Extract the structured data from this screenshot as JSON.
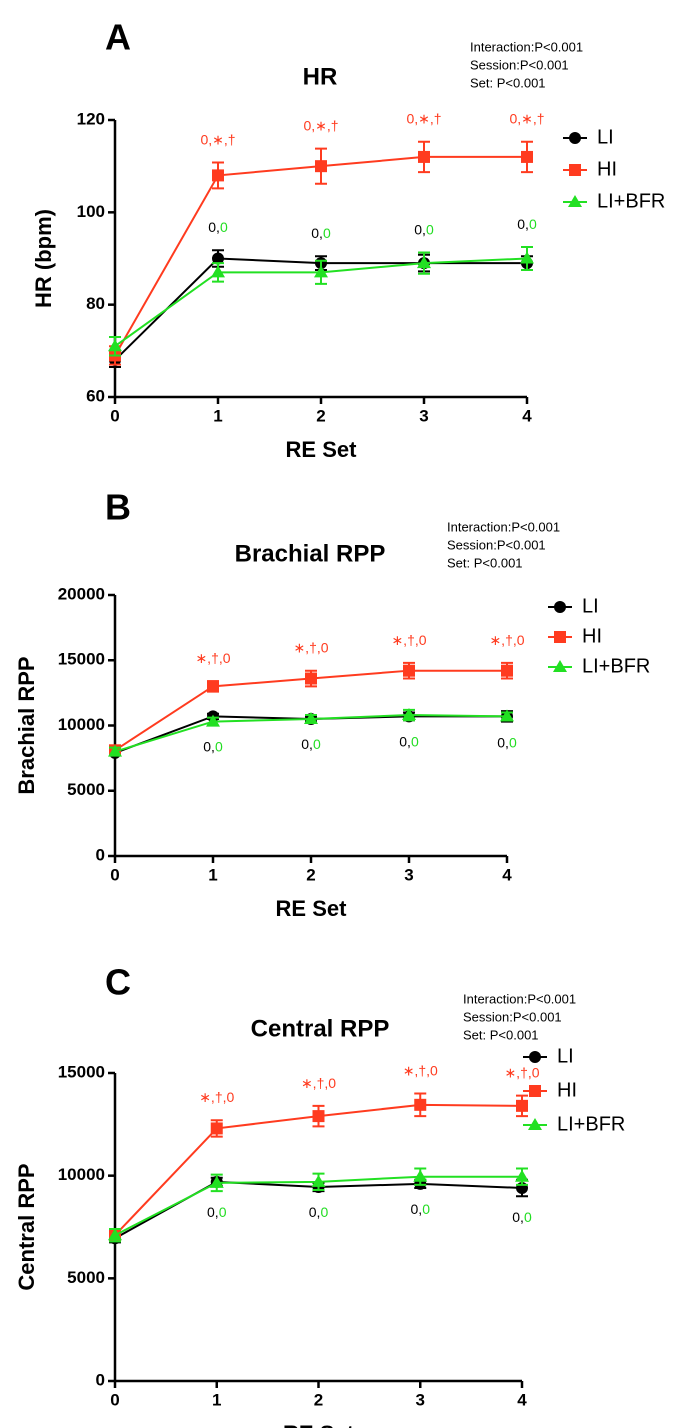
{
  "chart_data": [
    {
      "type": "line",
      "panel": "A",
      "title": "HR",
      "stats": [
        "Interaction:P<0.001",
        "Session:P<0.001",
        "Set: P<0.001"
      ],
      "x_label": "RE Set",
      "y_label": "HR (bpm)",
      "x": [
        0,
        1,
        2,
        3,
        4
      ],
      "xlim": [
        0,
        4
      ],
      "xticks": [
        0,
        1,
        2,
        3,
        4
      ],
      "ylim": [
        60,
        120
      ],
      "yticks": [
        60,
        80,
        100,
        120
      ],
      "series": [
        {
          "name": "LI",
          "color": "#000000",
          "marker": "circle",
          "values": [
            68,
            90,
            89,
            89,
            89
          ],
          "errors": [
            1.5,
            1.8,
            1.5,
            1.8,
            1.5
          ]
        },
        {
          "name": "HI",
          "color": "#ff3b1f",
          "marker": "square",
          "values": [
            69,
            108,
            110,
            112,
            112
          ],
          "errors": [
            2,
            2.8,
            3.8,
            3.3,
            3.3
          ]
        },
        {
          "name": "LI+BFR",
          "color": "#22e022",
          "marker": "triangle",
          "values": [
            71,
            87,
            87,
            89,
            90
          ],
          "errors": [
            2,
            2,
            2.5,
            2.3,
            2.5
          ]
        }
      ],
      "annotations": [
        {
          "x": 1,
          "series": [
            1
          ],
          "side": "above",
          "parts": [
            {
              "text": "0,∗,†",
              "color": "#ff3b1f"
            }
          ]
        },
        {
          "x": 2,
          "series": [
            1
          ],
          "side": "above",
          "parts": [
            {
              "text": "0,∗,†",
              "color": "#ff3b1f"
            }
          ]
        },
        {
          "x": 3,
          "series": [
            1
          ],
          "side": "above",
          "parts": [
            {
              "text": "0,∗,†",
              "color": "#ff3b1f"
            }
          ]
        },
        {
          "x": 4,
          "series": [
            1
          ],
          "side": "above",
          "parts": [
            {
              "text": "0,∗,†",
              "color": "#ff3b1f"
            }
          ]
        },
        {
          "x": 1,
          "series": [
            0,
            2
          ],
          "side": "above",
          "parts": [
            {
              "text": "0,",
              "color": "#000000"
            },
            {
              "text": "0",
              "color": "#22dd22"
            }
          ]
        },
        {
          "x": 2,
          "series": [
            0,
            2
          ],
          "side": "above",
          "parts": [
            {
              "text": "0,",
              "color": "#000000"
            },
            {
              "text": "0",
              "color": "#22dd22"
            }
          ]
        },
        {
          "x": 3,
          "series": [
            0,
            2
          ],
          "side": "above",
          "parts": [
            {
              "text": "0,",
              "color": "#000000"
            },
            {
              "text": "0",
              "color": "#22dd22"
            }
          ]
        },
        {
          "x": 4,
          "series": [
            0,
            2
          ],
          "side": "above",
          "parts": [
            {
              "text": "0,",
              "color": "#000000"
            },
            {
              "text": "0",
              "color": "#22dd22"
            }
          ]
        }
      ]
    },
    {
      "type": "line",
      "panel": "B",
      "title": "Brachial RPP",
      "stats": [
        "Interaction:P<0.001",
        "Session:P<0.001",
        "Set: P<0.001"
      ],
      "x_label": "RE Set",
      "y_label": "Brachial RPP",
      "x": [
        0,
        1,
        2,
        3,
        4
      ],
      "xlim": [
        0,
        4
      ],
      "xticks": [
        0,
        1,
        2,
        3,
        4
      ],
      "ylim": [
        0,
        20000
      ],
      "yticks": [
        0,
        5000,
        10000,
        15000,
        20000
      ],
      "series": [
        {
          "name": "LI",
          "color": "#000000",
          "marker": "circle",
          "values": [
            7900,
            10700,
            10500,
            10700,
            10700
          ],
          "errors": [
            200,
            200,
            200,
            300,
            400
          ]
        },
        {
          "name": "HI",
          "color": "#ff3b1f",
          "marker": "square",
          "values": [
            8100,
            13000,
            13600,
            14200,
            14200
          ],
          "errors": [
            300,
            400,
            600,
            600,
            600
          ]
        },
        {
          "name": "LI+BFR",
          "color": "#22e022",
          "marker": "triangle",
          "values": [
            8000,
            10300,
            10500,
            10800,
            10700
          ],
          "errors": [
            300,
            300,
            300,
            400,
            300
          ]
        }
      ],
      "annotations": [
        {
          "x": 1,
          "series": [
            1
          ],
          "side": "above",
          "parts": [
            {
              "text": "∗,†,0",
              "color": "#ff3b1f"
            }
          ]
        },
        {
          "x": 2,
          "series": [
            1
          ],
          "side": "above",
          "parts": [
            {
              "text": "∗,†,0",
              "color": "#ff3b1f"
            }
          ]
        },
        {
          "x": 3,
          "series": [
            1
          ],
          "side": "above",
          "parts": [
            {
              "text": "∗,†,0",
              "color": "#ff3b1f"
            }
          ]
        },
        {
          "x": 4,
          "series": [
            1
          ],
          "side": "above",
          "parts": [
            {
              "text": "∗,†,0",
              "color": "#ff3b1f"
            }
          ]
        },
        {
          "x": 1,
          "series": [
            0,
            2
          ],
          "side": "below",
          "parts": [
            {
              "text": "0,",
              "color": "#000000"
            },
            {
              "text": "0",
              "color": "#22dd22"
            }
          ]
        },
        {
          "x": 2,
          "series": [
            0,
            2
          ],
          "side": "below",
          "parts": [
            {
              "text": "0,",
              "color": "#000000"
            },
            {
              "text": "0",
              "color": "#22dd22"
            }
          ]
        },
        {
          "x": 3,
          "series": [
            0,
            2
          ],
          "side": "below",
          "parts": [
            {
              "text": "0,",
              "color": "#000000"
            },
            {
              "text": "0",
              "color": "#22dd22"
            }
          ]
        },
        {
          "x": 4,
          "series": [
            0,
            2
          ],
          "side": "below",
          "parts": [
            {
              "text": "0,",
              "color": "#000000"
            },
            {
              "text": "0",
              "color": "#22dd22"
            }
          ]
        }
      ]
    },
    {
      "type": "line",
      "panel": "C",
      "title": "Central RPP",
      "stats": [
        "Interaction:P<0.001",
        "Session:P<0.001",
        "Set: P<0.001"
      ],
      "x_label": "RE Set",
      "y_label": "Central RPP",
      "x": [
        0,
        1,
        2,
        3,
        4
      ],
      "xlim": [
        0,
        4
      ],
      "xticks": [
        0,
        1,
        2,
        3,
        4
      ],
      "ylim": [
        0,
        15000
      ],
      "yticks": [
        0,
        5000,
        10000,
        15000
      ],
      "series": [
        {
          "name": "LI",
          "color": "#000000",
          "marker": "circle",
          "values": [
            6950,
            9700,
            9450,
            9600,
            9400
          ],
          "errors": [
            200,
            200,
            200,
            200,
            400
          ]
        },
        {
          "name": "HI",
          "color": "#ff3b1f",
          "marker": "square",
          "values": [
            7100,
            12300,
            12900,
            13450,
            13400
          ],
          "errors": [
            250,
            400,
            500,
            550,
            500
          ]
        },
        {
          "name": "LI+BFR",
          "color": "#22e022",
          "marker": "triangle",
          "values": [
            7100,
            9650,
            9700,
            9950,
            9950
          ],
          "errors": [
            300,
            400,
            400,
            400,
            400
          ]
        }
      ],
      "annotations": [
        {
          "x": 1,
          "series": [
            1
          ],
          "side": "above",
          "parts": [
            {
              "text": "∗,†,0",
              "color": "#ff3b1f"
            }
          ]
        },
        {
          "x": 2,
          "series": [
            1
          ],
          "side": "above",
          "parts": [
            {
              "text": "∗,†,0",
              "color": "#ff3b1f"
            }
          ]
        },
        {
          "x": 3,
          "series": [
            1
          ],
          "side": "above",
          "parts": [
            {
              "text": "∗,†,0",
              "color": "#ff3b1f"
            }
          ]
        },
        {
          "x": 4,
          "series": [
            1
          ],
          "side": "above",
          "parts": [
            {
              "text": "∗,†,0",
              "color": "#ff3b1f"
            }
          ]
        },
        {
          "x": 1,
          "series": [
            0,
            2
          ],
          "side": "below",
          "parts": [
            {
              "text": "0,",
              "color": "#000000"
            },
            {
              "text": "0",
              "color": "#22dd22"
            }
          ]
        },
        {
          "x": 2,
          "series": [
            0,
            2
          ],
          "side": "below",
          "parts": [
            {
              "text": "0,",
              "color": "#000000"
            },
            {
              "text": "0",
              "color": "#22dd22"
            }
          ]
        },
        {
          "x": 3,
          "series": [
            0,
            2
          ],
          "side": "below",
          "parts": [
            {
              "text": "0,",
              "color": "#000000"
            },
            {
              "text": "0",
              "color": "#22dd22"
            }
          ]
        },
        {
          "x": 4,
          "series": [
            0,
            2
          ],
          "side": "below",
          "parts": [
            {
              "text": "0,",
              "color": "#000000"
            },
            {
              "text": "0",
              "color": "#22dd22"
            }
          ]
        }
      ]
    }
  ]
}
